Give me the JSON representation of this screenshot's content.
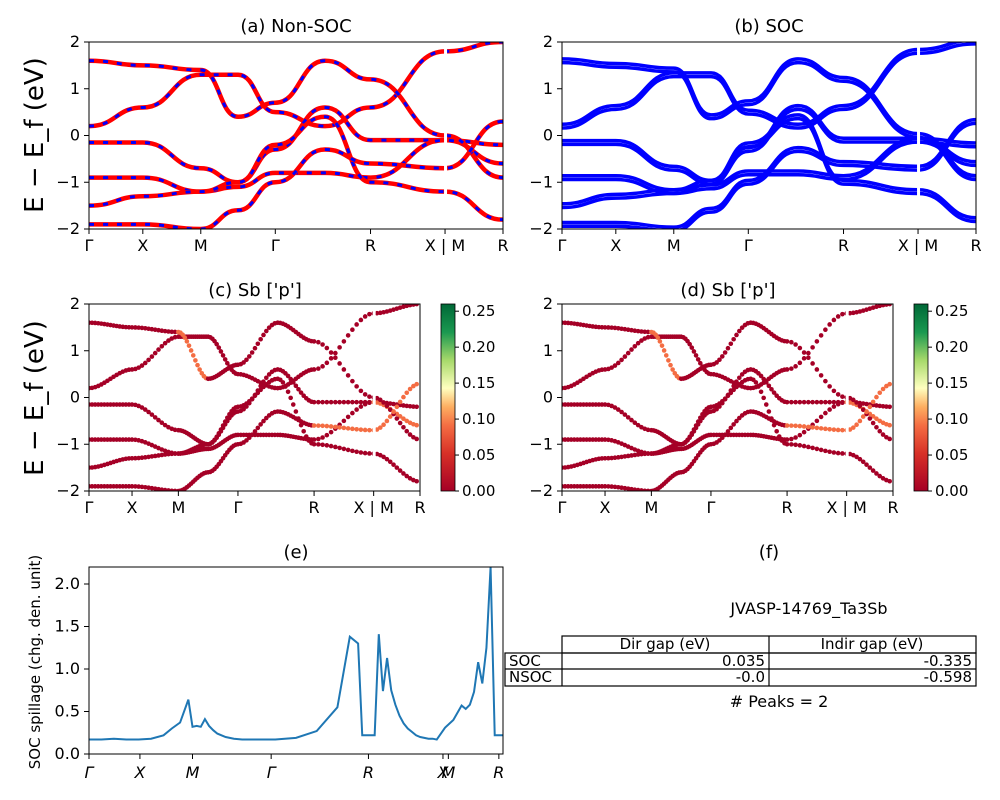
{
  "figure": {
    "id_label": "JVASP-14769_Ta3Sb",
    "ylabel_band": "E − E_f (eV)",
    "kpath_band": [
      "Γ",
      "X",
      "M",
      "Γ",
      "R",
      "X | M",
      "R"
    ],
    "kpath_spill": [
      "Γ",
      "X",
      "M",
      "Γ",
      "R",
      "X",
      "M",
      "R"
    ],
    "colorbar_ticks": [
      "0.00",
      "0.05",
      "0.10",
      "0.15",
      "0.20",
      "0.25"
    ],
    "ylim_band": [
      -2,
      2
    ],
    "yticks_band": [
      "−2",
      "−1",
      "0",
      "1",
      "2"
    ]
  },
  "panels": {
    "a": {
      "title": "(a) Non-SOC"
    },
    "b": {
      "title": "(b) SOC"
    },
    "c": {
      "title": "(c)  Sb ['p']"
    },
    "d": {
      "title": "(d) Sb ['p']"
    },
    "e": {
      "title": "(e)",
      "ylabel": "SOC spillage (chg. den. unit)"
    },
    "f": {
      "title": "(f)"
    }
  },
  "table": {
    "headers": [
      "",
      "Dir gap (eV)",
      "Indir gap (eV)"
    ],
    "rows": [
      {
        "label": "SOC",
        "dir": "0.035",
        "indir": "-0.335"
      },
      {
        "label": "NSOC",
        "dir": "-0.0",
        "indir": "-0.598"
      }
    ],
    "peaks": "# Peaks = 2"
  },
  "colors": {
    "nonsoc_line": "#ff0000",
    "soc_line": "#0000ff",
    "spillage_line": "#1f77b4"
  },
  "chart_data": [
    {
      "type": "line",
      "panel": "e",
      "title": "(e)",
      "ylabel": "SOC spillage (chg. den. unit)",
      "ylim": [
        0,
        2.2
      ],
      "yticks": [
        "0.0",
        "0.5",
        "1.0",
        "1.5",
        "2.0"
      ],
      "x": [
        0,
        3,
        6,
        9,
        12,
        15,
        18,
        20,
        22,
        24,
        25,
        26,
        27,
        28,
        29,
        30,
        31,
        33,
        35,
        37,
        40,
        45,
        50,
        55,
        60,
        63,
        65,
        66,
        67,
        68,
        69,
        70,
        71,
        72,
        73,
        74,
        75,
        76,
        77,
        78,
        79,
        80,
        81,
        82,
        83,
        84,
        86,
        88,
        90,
        91,
        92,
        93,
        94,
        95,
        96,
        97,
        98,
        99,
        100
      ],
      "values": [
        0.17,
        0.17,
        0.18,
        0.17,
        0.17,
        0.18,
        0.22,
        0.3,
        0.37,
        0.64,
        0.32,
        0.33,
        0.32,
        0.41,
        0.33,
        0.28,
        0.24,
        0.2,
        0.18,
        0.17,
        0.17,
        0.17,
        0.19,
        0.27,
        0.55,
        1.38,
        1.3,
        0.22,
        0.22,
        0.22,
        0.22,
        1.41,
        0.74,
        1.13,
        0.75,
        0.58,
        0.45,
        0.36,
        0.3,
        0.26,
        0.22,
        0.2,
        0.19,
        0.18,
        0.18,
        0.17,
        0.31,
        0.4,
        0.57,
        0.53,
        0.58,
        0.73,
        1.08,
        0.83,
        1.25,
        2.2,
        0.22,
        0.22,
        0.22
      ],
      "xticks": [
        "Γ",
        "X",
        "M",
        "Γ",
        "R",
        "X",
        "M",
        "R"
      ]
    },
    {
      "type": "table",
      "panel": "f",
      "title": "JVASP-14769_Ta3Sb",
      "columns": [
        "Dir gap (eV)",
        "Indir gap (eV)"
      ],
      "rows": [
        [
          "SOC",
          0.035,
          -0.335
        ],
        [
          "NSOC",
          -0.0,
          -0.598
        ]
      ],
      "note": "# Peaks = 2"
    },
    {
      "type": "line",
      "panel": "a",
      "title": "(a) Non-SOC",
      "ylim": [
        -2,
        2
      ],
      "series": [
        {
          "values": [
            0.2,
            0.6,
            1.3,
            1.3,
            0.5,
            0.2,
            0.6,
            1.8,
            2.0
          ]
        },
        {
          "values": [
            -0.15,
            -0.15,
            -0.7,
            -1.0,
            -0.3,
            0.6,
            -0.1,
            -0.1,
            -0.2
          ]
        },
        {
          "values": [
            -0.9,
            -0.9,
            -1.2,
            -1.1,
            -0.8,
            -0.8,
            -0.9,
            -0.1,
            -0.6
          ]
        },
        {
          "values": [
            -1.5,
            -1.3,
            -1.2,
            -1.0,
            -0.2,
            0.4,
            -1.0,
            -1.2,
            -1.8
          ]
        },
        {
          "values": [
            1.6,
            1.5,
            1.4,
            0.4,
            0.7,
            1.6,
            1.2,
            0.0,
            -0.9
          ]
        },
        {
          "values": [
            -1.9,
            -1.9,
            -2.0,
            -1.6,
            -1.0,
            -0.3,
            -0.6,
            -0.7,
            0.3
          ]
        }
      ]
    }
  ]
}
